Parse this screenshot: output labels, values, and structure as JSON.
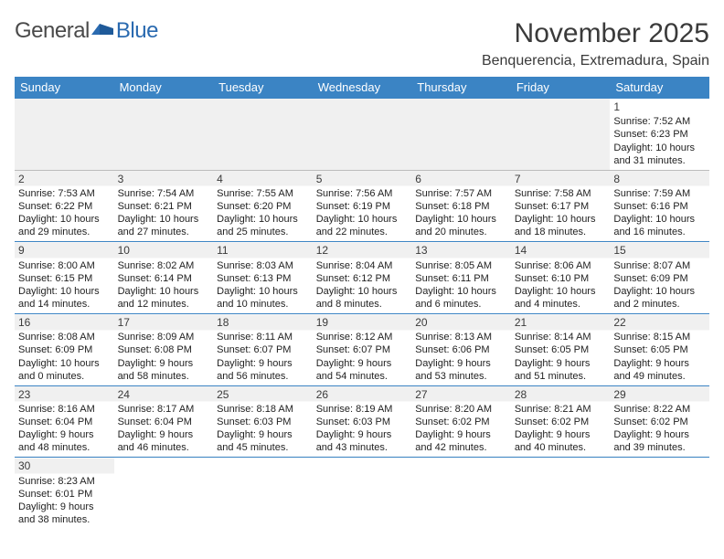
{
  "logo": {
    "part1": "General",
    "part2": "Blue"
  },
  "title": "November 2025",
  "location": "Benquerencia, Extremadura, Spain",
  "colors": {
    "header_bg": "#3b84c4",
    "header_text": "#ffffff",
    "row_divider": "#3b84c4",
    "blank_bg": "#f0f0f0",
    "text": "#222222"
  },
  "weekdays": [
    "Sunday",
    "Monday",
    "Tuesday",
    "Wednesday",
    "Thursday",
    "Friday",
    "Saturday"
  ],
  "days": {
    "1": {
      "sr": "7:52 AM",
      "ss": "6:23 PM",
      "dl": "10 hours and 31 minutes."
    },
    "2": {
      "sr": "7:53 AM",
      "ss": "6:22 PM",
      "dl": "10 hours and 29 minutes."
    },
    "3": {
      "sr": "7:54 AM",
      "ss": "6:21 PM",
      "dl": "10 hours and 27 minutes."
    },
    "4": {
      "sr": "7:55 AM",
      "ss": "6:20 PM",
      "dl": "10 hours and 25 minutes."
    },
    "5": {
      "sr": "7:56 AM",
      "ss": "6:19 PM",
      "dl": "10 hours and 22 minutes."
    },
    "6": {
      "sr": "7:57 AM",
      "ss": "6:18 PM",
      "dl": "10 hours and 20 minutes."
    },
    "7": {
      "sr": "7:58 AM",
      "ss": "6:17 PM",
      "dl": "10 hours and 18 minutes."
    },
    "8": {
      "sr": "7:59 AM",
      "ss": "6:16 PM",
      "dl": "10 hours and 16 minutes."
    },
    "9": {
      "sr": "8:00 AM",
      "ss": "6:15 PM",
      "dl": "10 hours and 14 minutes."
    },
    "10": {
      "sr": "8:02 AM",
      "ss": "6:14 PM",
      "dl": "10 hours and 12 minutes."
    },
    "11": {
      "sr": "8:03 AM",
      "ss": "6:13 PM",
      "dl": "10 hours and 10 minutes."
    },
    "12": {
      "sr": "8:04 AM",
      "ss": "6:12 PM",
      "dl": "10 hours and 8 minutes."
    },
    "13": {
      "sr": "8:05 AM",
      "ss": "6:11 PM",
      "dl": "10 hours and 6 minutes."
    },
    "14": {
      "sr": "8:06 AM",
      "ss": "6:10 PM",
      "dl": "10 hours and 4 minutes."
    },
    "15": {
      "sr": "8:07 AM",
      "ss": "6:09 PM",
      "dl": "10 hours and 2 minutes."
    },
    "16": {
      "sr": "8:08 AM",
      "ss": "6:09 PM",
      "dl": "10 hours and 0 minutes."
    },
    "17": {
      "sr": "8:09 AM",
      "ss": "6:08 PM",
      "dl": "9 hours and 58 minutes."
    },
    "18": {
      "sr": "8:11 AM",
      "ss": "6:07 PM",
      "dl": "9 hours and 56 minutes."
    },
    "19": {
      "sr": "8:12 AM",
      "ss": "6:07 PM",
      "dl": "9 hours and 54 minutes."
    },
    "20": {
      "sr": "8:13 AM",
      "ss": "6:06 PM",
      "dl": "9 hours and 53 minutes."
    },
    "21": {
      "sr": "8:14 AM",
      "ss": "6:05 PM",
      "dl": "9 hours and 51 minutes."
    },
    "22": {
      "sr": "8:15 AM",
      "ss": "6:05 PM",
      "dl": "9 hours and 49 minutes."
    },
    "23": {
      "sr": "8:16 AM",
      "ss": "6:04 PM",
      "dl": "9 hours and 48 minutes."
    },
    "24": {
      "sr": "8:17 AM",
      "ss": "6:04 PM",
      "dl": "9 hours and 46 minutes."
    },
    "25": {
      "sr": "8:18 AM",
      "ss": "6:03 PM",
      "dl": "9 hours and 45 minutes."
    },
    "26": {
      "sr": "8:19 AM",
      "ss": "6:03 PM",
      "dl": "9 hours and 43 minutes."
    },
    "27": {
      "sr": "8:20 AM",
      "ss": "6:02 PM",
      "dl": "9 hours and 42 minutes."
    },
    "28": {
      "sr": "8:21 AM",
      "ss": "6:02 PM",
      "dl": "9 hours and 40 minutes."
    },
    "29": {
      "sr": "8:22 AM",
      "ss": "6:02 PM",
      "dl": "9 hours and 39 minutes."
    },
    "30": {
      "sr": "8:23 AM",
      "ss": "6:01 PM",
      "dl": "9 hours and 38 minutes."
    }
  },
  "labels": {
    "sunrise": "Sunrise: ",
    "sunset": "Sunset: ",
    "daylight": "Daylight: "
  },
  "grid": [
    [
      null,
      null,
      null,
      null,
      null,
      null,
      "1"
    ],
    [
      "2",
      "3",
      "4",
      "5",
      "6",
      "7",
      "8"
    ],
    [
      "9",
      "10",
      "11",
      "12",
      "13",
      "14",
      "15"
    ],
    [
      "16",
      "17",
      "18",
      "19",
      "20",
      "21",
      "22"
    ],
    [
      "23",
      "24",
      "25",
      "26",
      "27",
      "28",
      "29"
    ],
    [
      "30",
      null,
      null,
      null,
      null,
      null,
      null
    ]
  ]
}
